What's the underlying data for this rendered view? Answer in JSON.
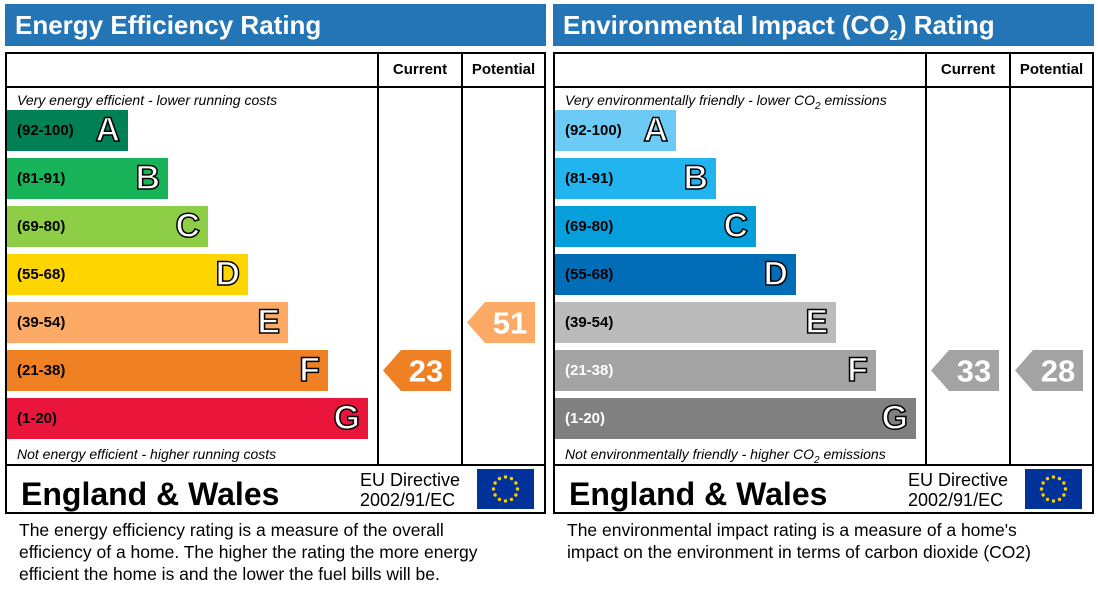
{
  "chart_data": [
    {
      "type": "bar",
      "title": "Energy Efficiency Rating",
      "columns": [
        "Current",
        "Potential"
      ],
      "top_note": "Very energy efficient - lower running costs",
      "bottom_note": "Not energy efficient - higher running costs",
      "bands": [
        {
          "range": "(92-100)",
          "letter": "A",
          "color": "#008054"
        },
        {
          "range": "(81-91)",
          "letter": "B",
          "color": "#19b459"
        },
        {
          "range": "(69-80)",
          "letter": "C",
          "color": "#8dce46"
        },
        {
          "range": "(55-68)",
          "letter": "D",
          "color": "#ffd500"
        },
        {
          "range": "(39-54)",
          "letter": "E",
          "color": "#fcaa65"
        },
        {
          "range": "(21-38)",
          "letter": "F",
          "color": "#ef8023"
        },
        {
          "range": "(1-20)",
          "letter": "G",
          "color": "#e9153b"
        }
      ],
      "current": {
        "value": "23",
        "band": "F",
        "color": "#ef8023"
      },
      "potential": {
        "value": "51",
        "band": "E",
        "color": "#fcaa65"
      },
      "footer": {
        "region": "England & Wales",
        "directive_line1": "EU Directive",
        "directive_line2": "2002/91/EC"
      },
      "description": [
        "The energy efficiency rating is a measure of the overall",
        "efficiency of a home.  The higher the rating the more energy",
        "efficient the home is and the lower the fuel bills will be."
      ]
    },
    {
      "type": "bar",
      "title": "Environmental Impact (CO2) Rating",
      "columns": [
        "Current",
        "Potential"
      ],
      "top_note": "Very environmentally friendly - lower CO2 emissions",
      "bottom_note": "Not environmentally friendly - higher CO2 emissions",
      "bands": [
        {
          "range": "(92-100)",
          "letter": "A",
          "color": "#6ccbf4"
        },
        {
          "range": "(81-91)",
          "letter": "B",
          "color": "#21b4ef"
        },
        {
          "range": "(69-80)",
          "letter": "C",
          "color": "#059fdb"
        },
        {
          "range": "(55-68)",
          "letter": "D",
          "color": "#006db6"
        },
        {
          "range": "(39-54)",
          "letter": "E",
          "color": "#bbbbbb"
        },
        {
          "range": "(21-38)",
          "letter": "F",
          "color": "#a3a3a3"
        },
        {
          "range": "(1-20)",
          "letter": "G",
          "color": "#808080"
        }
      ],
      "current": {
        "value": "33",
        "band": "F",
        "color": "#a3a3a3"
      },
      "potential": {
        "value": "28",
        "band": "F",
        "color": "#a3a3a3"
      },
      "footer": {
        "region": "England & Wales",
        "directive_line1": "EU Directive",
        "directive_line2": "2002/91/EC"
      },
      "description": [
        "The environmental impact rating is a measure of a home's",
        "impact on the environment in terms of carbon dioxide (CO2)"
      ]
    }
  ]
}
